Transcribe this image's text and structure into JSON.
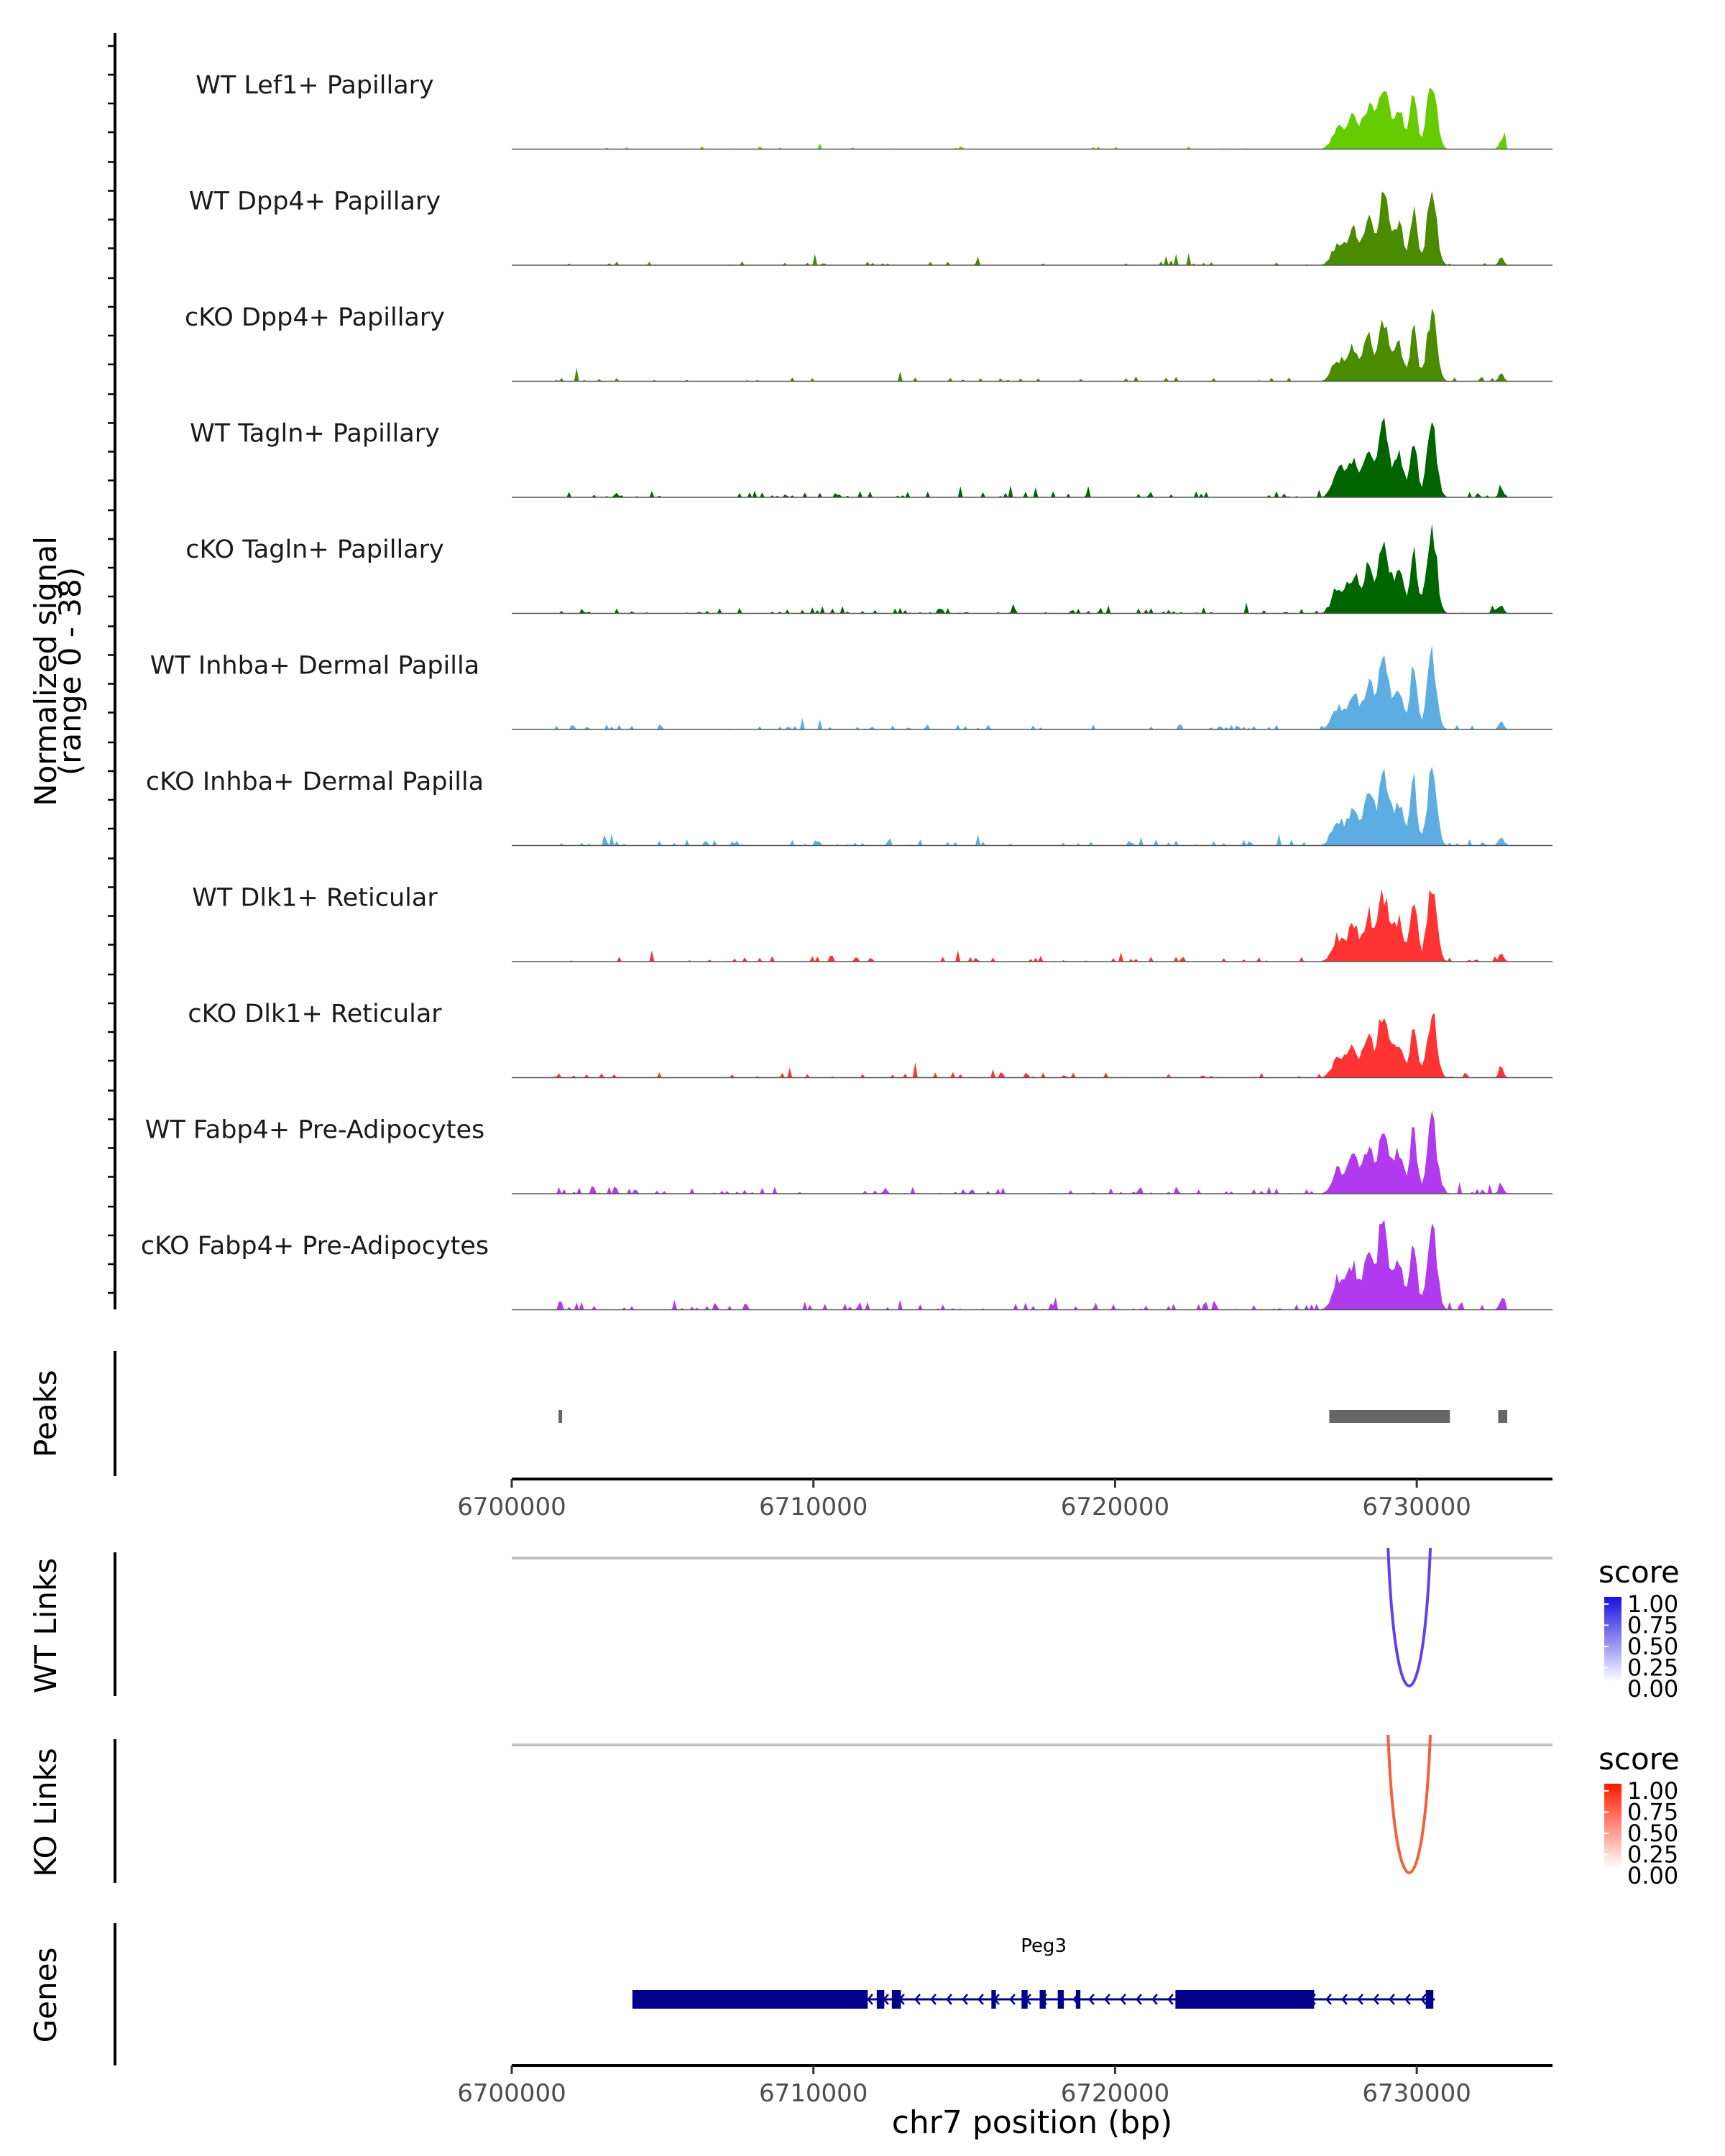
{
  "chart_data": {
    "type": "area",
    "region": "chr7",
    "xlim": [
      6700000,
      6734500
    ],
    "x_ticks": [
      6700000,
      6710000,
      6720000,
      6730000
    ],
    "x_tick_labels": [
      "6700000",
      "6710000",
      "6720000",
      "6730000"
    ],
    "xlabel": "chr7 position (bp)",
    "coverage": {
      "ylabel_line1": "Normalized signal",
      "ylabel_line2": "(range 0 - 38)",
      "ylim": [
        0,
        38
      ],
      "tracks": [
        {
          "name": "WT Lef1+ Papillary",
          "color": "#66CC00",
          "peak_scale": 0.75,
          "noise": 0.45,
          "seed": 11
        },
        {
          "name": "WT Dpp4+ Papillary",
          "color": "#4B8B00",
          "peak_scale": 0.76,
          "noise": 0.6,
          "seed": 23
        },
        {
          "name": "cKO Dpp4+ Papillary",
          "color": "#4B8B00",
          "peak_scale": 0.72,
          "noise": 0.7,
          "seed": 37
        },
        {
          "name": "WT Tagln+ Papillary",
          "color": "#006400",
          "peak_scale": 0.78,
          "noise": 1.0,
          "seed": 41
        },
        {
          "name": "cKO Tagln+ Papillary",
          "color": "#006400",
          "peak_scale": 0.84,
          "noise": 1.0,
          "seed": 53
        },
        {
          "name": "WT Inhba+ Dermal Papilla",
          "color": "#5DADE2",
          "peak_scale": 0.78,
          "noise": 0.8,
          "seed": 67
        },
        {
          "name": "cKO Inhba+ Dermal Papilla",
          "color": "#5DADE2",
          "peak_scale": 0.8,
          "noise": 1.0,
          "seed": 71
        },
        {
          "name": "WT Dlk1+ Reticular",
          "color": "#FF3333",
          "peak_scale": 0.78,
          "noise": 0.9,
          "seed": 83
        },
        {
          "name": "cKO Dlk1+ Reticular",
          "color": "#FF3333",
          "peak_scale": 0.7,
          "noise": 0.9,
          "seed": 97
        },
        {
          "name": "WT Fabp4+ Pre-Adipocytes",
          "color": "#B23AEE",
          "peak_scale": 0.78,
          "noise": 1.2,
          "seed": 101
        },
        {
          "name": "cKO Fabp4+ Pre-Adipocytes",
          "color": "#B23AEE",
          "peak_scale": 0.9,
          "noise": 1.3,
          "seed": 113
        }
      ]
    },
    "peaks": {
      "label": "Peaks",
      "color": "#666666",
      "regions": [
        [
          6701550,
          6701650
        ],
        [
          6727100,
          6731100
        ],
        [
          6732700,
          6733000
        ]
      ]
    },
    "links": [
      {
        "label": "WT Links",
        "legend_title": "score",
        "color_low": "#FFFFFF",
        "color_high": "#1A0FE0",
        "link_color": "#6540E8",
        "start": 6729050,
        "end": 6730450,
        "score": 0.75,
        "legend_ticks": [
          "1.00",
          "0.75",
          "0.50",
          "0.25",
          "0.00"
        ]
      },
      {
        "label": "KO Links",
        "legend_title": "score",
        "color_low": "#FFFFFF",
        "color_high": "#FF1A00",
        "link_color": "#F0613F",
        "start": 6729050,
        "end": 6730450,
        "score": 0.75,
        "legend_ticks": [
          "1.00",
          "0.75",
          "0.50",
          "0.25",
          "0.00"
        ]
      }
    ],
    "genes": {
      "label": "Genes",
      "color": "#00008B",
      "items": [
        {
          "name": "Peg3",
          "strand": "-",
          "start": 6704000,
          "end": 6730600,
          "exons": [
            [
              6704000,
              6711800
            ],
            [
              6712100,
              6712350
            ],
            [
              6712600,
              6712900
            ],
            [
              6715900,
              6716050
            ],
            [
              6716900,
              6717100
            ],
            [
              6717500,
              6717700
            ],
            [
              6718100,
              6718300
            ],
            [
              6718700,
              6718850
            ],
            [
              6722000,
              6726600
            ],
            [
              6730300,
              6730550
            ]
          ]
        }
      ]
    }
  }
}
